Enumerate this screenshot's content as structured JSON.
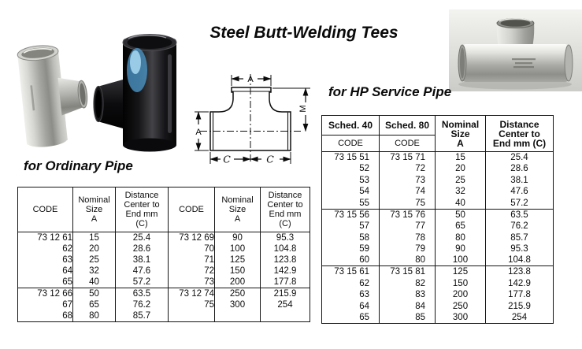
{
  "page": {
    "title": "Steel Butt-Welding Tees"
  },
  "sections": {
    "ordinary": {
      "label": "for Ordinary Pipe"
    },
    "hp": {
      "label": "for HP Service Pipe"
    }
  },
  "diagram": {
    "top_width_label": "A",
    "left_height_label": "A",
    "branch_height_label": "M",
    "center_to_end_left_label": "C",
    "center_to_end_right_label": "C"
  },
  "ordinary_table": {
    "headers": {
      "code": "CODE",
      "nominal": "Nominal\nSize\nA",
      "distance": "Distance\nCenter to\nEnd mm\n(C)"
    },
    "columns": [
      "code",
      "num",
      "num",
      "code",
      "num",
      "num"
    ],
    "groups": [
      {
        "rows": [
          [
            "73 12 61",
            "15",
            "25.4",
            "73 12 69",
            "90",
            "95.3"
          ],
          [
            "62",
            "20",
            "28.6",
            "70",
            "100",
            "104.8"
          ],
          [
            "63",
            "25",
            "38.1",
            "71",
            "125",
            "123.8"
          ],
          [
            "64",
            "32",
            "47.6",
            "72",
            "150",
            "142.9"
          ],
          [
            "65",
            "40",
            "57.2",
            "73",
            "200",
            "177.8"
          ]
        ]
      },
      {
        "rows": [
          [
            "73 12 66",
            "50",
            "63.5",
            "73 12 74",
            "250",
            "215.9"
          ],
          [
            "67",
            "65",
            "76.2",
            "75",
            "300",
            "254"
          ],
          [
            "68",
            "80",
            "85.7",
            "",
            "",
            ""
          ]
        ]
      }
    ]
  },
  "hp_table": {
    "headers": {
      "sched40": "Sched. 40",
      "sched80": "Sched. 80",
      "code": "CODE",
      "nominal": "Nominal\nSize\nA",
      "distance": "Distance\nCenter to\nEnd mm (C)"
    },
    "columns": [
      "code",
      "code",
      "num",
      "num"
    ],
    "groups": [
      {
        "rows": [
          [
            "73 15 51",
            "73 15 71",
            "15",
            "25.4"
          ],
          [
            "52",
            "72",
            "20",
            "28.6"
          ],
          [
            "53",
            "73",
            "25",
            "38.1"
          ],
          [
            "54",
            "74",
            "32",
            "47.6"
          ],
          [
            "55",
            "75",
            "40",
            "57.2"
          ]
        ]
      },
      {
        "rows": [
          [
            "73 15 56",
            "73 15 76",
            "50",
            "63.5"
          ],
          [
            "57",
            "77",
            "65",
            "76.2"
          ],
          [
            "58",
            "78",
            "80",
            "85.7"
          ],
          [
            "59",
            "79",
            "90",
            "95.3"
          ],
          [
            "60",
            "80",
            "100",
            "104.8"
          ]
        ]
      },
      {
        "rows": [
          [
            "73 15 61",
            "73 15 81",
            "125",
            "123.8"
          ],
          [
            "62",
            "82",
            "150",
            "142.9"
          ],
          [
            "63",
            "83",
            "200",
            "177.8"
          ],
          [
            "64",
            "84",
            "250",
            "215.9"
          ],
          [
            "65",
            "85",
            "300",
            "254"
          ]
        ]
      }
    ]
  }
}
